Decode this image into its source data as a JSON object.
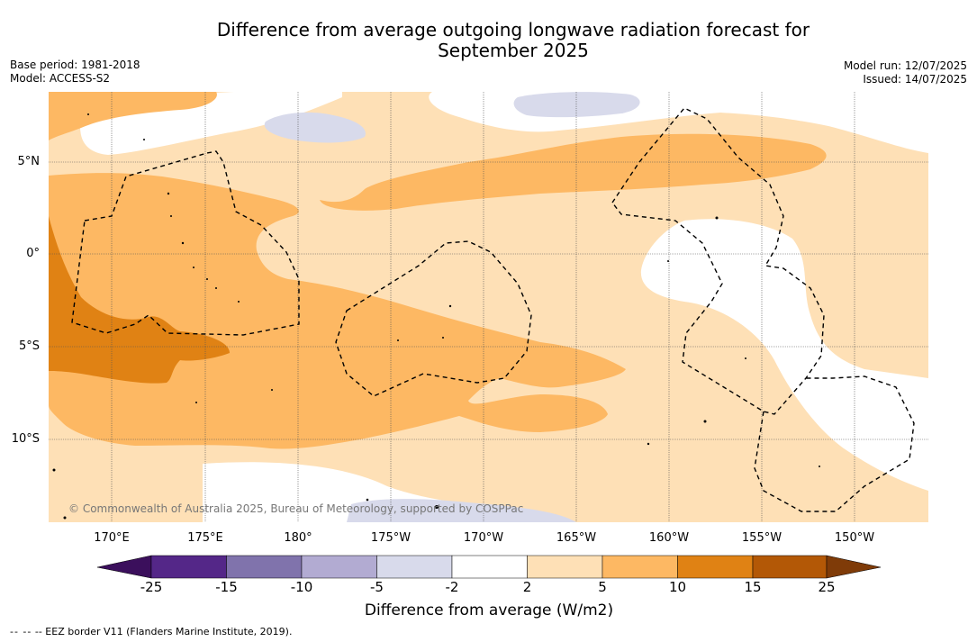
{
  "title_line1": "Difference from average outgoing longwave radiation forecast for",
  "title_line2": "September 2025",
  "base_period": "Base period: 1981-2018",
  "model": "Model: ACCESS-S2",
  "model_run": "Model run: 12/07/2025",
  "issued": "Issued: 14/07/2025",
  "copyright": "© Commonwealth of Australia 2025, Bureau of Meteorology, supported by COSPPac",
  "lat_labels": [
    "5°N",
    "0°",
    "5°S",
    "10°S"
  ],
  "lon_labels": [
    "170°E",
    "175°E",
    "180°",
    "175°W",
    "170°W",
    "165°W",
    "160°W",
    "155°W",
    "150°W"
  ],
  "colorbar": {
    "title": "Difference from average (W/m2)",
    "ticks": [
      "-25",
      "-15",
      "-10",
      "-5",
      "-2",
      "2",
      "5",
      "10",
      "15",
      "25"
    ],
    "colors": [
      "#3b0f5c",
      "#542788",
      "#8073ac",
      "#b2abd2",
      "#d8daeb",
      "#ffffff",
      "#fee0b6",
      "#fdb863",
      "#e08214",
      "#b35806",
      "#7f3b08"
    ]
  },
  "legend_footer": "-- EEZ border V11 (Flanders Marine Institute, 2019)."
}
